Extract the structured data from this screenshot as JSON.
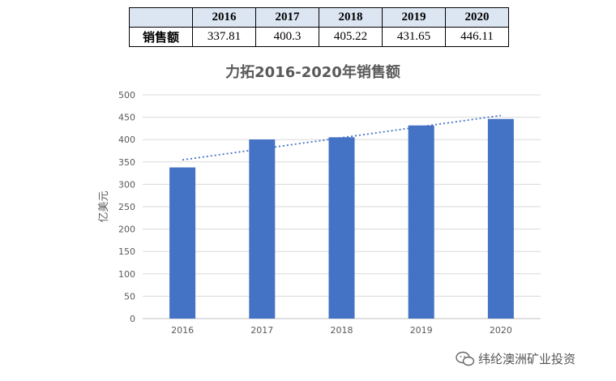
{
  "table": {
    "headers": [
      "",
      "2016",
      "2017",
      "2018",
      "2019",
      "2020"
    ],
    "row_label": "销售额",
    "row_values": [
      "337.81",
      "400.3",
      "405.22",
      "431.65",
      "446.11"
    ]
  },
  "chart_data": {
    "type": "bar",
    "title": "力拓2016-2020年销售额",
    "xlabel": "",
    "ylabel": "亿美元",
    "categories": [
      "2016",
      "2017",
      "2018",
      "2019",
      "2020"
    ],
    "values": [
      337.81,
      400.3,
      405.22,
      431.65,
      446.11
    ],
    "ylim": [
      0,
      500
    ],
    "yticks": [
      0,
      50,
      100,
      150,
      200,
      250,
      300,
      350,
      400,
      450,
      500
    ],
    "grid": true,
    "trendline": "linear",
    "colors": {
      "bar": "#4472c4",
      "trend": "#4472c4",
      "grid": "#d9d9d9"
    }
  },
  "watermark": {
    "icon": "wechat-icon",
    "text": "纬纶澳洲矿业投资"
  }
}
